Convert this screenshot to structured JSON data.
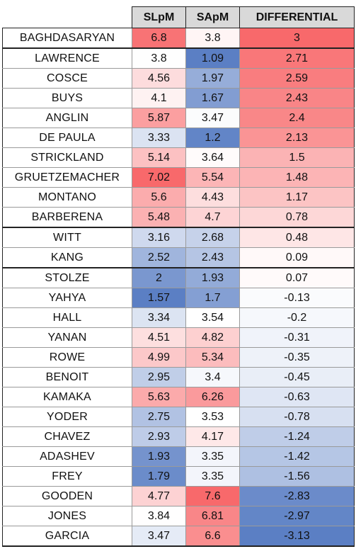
{
  "headers": [
    "",
    "SLpM",
    "SApM",
    "DIFFERENTIAL"
  ],
  "colors": {
    "low": "#5b7fc4",
    "mid": "#ffffff",
    "high": "#f8696b"
  },
  "rows": [
    {
      "name": "BAGHDASARYAN",
      "slpm": "6.8",
      "sapm": "3.8",
      "diff": "3"
    },
    {
      "name": "LAWRENCE",
      "slpm": "3.8",
      "sapm": "1.09",
      "diff": "2.71"
    },
    {
      "name": "COSCE",
      "slpm": "4.56",
      "sapm": "1.97",
      "diff": "2.59"
    },
    {
      "name": "BUYS",
      "slpm": "4.1",
      "sapm": "1.67",
      "diff": "2.43"
    },
    {
      "name": "ANGLIN",
      "slpm": "5.87",
      "sapm": "3.47",
      "diff": "2.4"
    },
    {
      "name": "DE PAULA",
      "slpm": "3.33",
      "sapm": "1.2",
      "diff": "2.13"
    },
    {
      "name": "STRICKLAND",
      "slpm": "5.14",
      "sapm": "3.64",
      "diff": "1.5"
    },
    {
      "name": "GRUETZEMACHER",
      "slpm": "7.02",
      "sapm": "5.54",
      "diff": "1.48"
    },
    {
      "name": "MONTANO",
      "slpm": "5.6",
      "sapm": "4.43",
      "diff": "1.17"
    },
    {
      "name": "BARBERENA",
      "slpm": "5.48",
      "sapm": "4.7",
      "diff": "0.78"
    },
    {
      "name": "WITT",
      "slpm": "3.16",
      "sapm": "2.68",
      "diff": "0.48"
    },
    {
      "name": "KANG",
      "slpm": "2.52",
      "sapm": "2.43",
      "diff": "0.09"
    },
    {
      "name": "STOLZE",
      "slpm": "2",
      "sapm": "1.93",
      "diff": "0.07"
    },
    {
      "name": "YAHYA",
      "slpm": "1.57",
      "sapm": "1.7",
      "diff": "-0.13"
    },
    {
      "name": "HALL",
      "slpm": "3.34",
      "sapm": "3.54",
      "diff": "-0.2"
    },
    {
      "name": "YANAN",
      "slpm": "4.51",
      "sapm": "4.82",
      "diff": "-0.31"
    },
    {
      "name": "ROWE",
      "slpm": "4.99",
      "sapm": "5.34",
      "diff": "-0.35"
    },
    {
      "name": "BENOIT",
      "slpm": "2.95",
      "sapm": "3.4",
      "diff": "-0.45"
    },
    {
      "name": "KAMAKA",
      "slpm": "5.63",
      "sapm": "6.26",
      "diff": "-0.63"
    },
    {
      "name": "YODER",
      "slpm": "2.75",
      "sapm": "3.53",
      "diff": "-0.78"
    },
    {
      "name": "CHAVEZ",
      "slpm": "2.93",
      "sapm": "4.17",
      "diff": "-1.24"
    },
    {
      "name": "ADASHEV",
      "slpm": "1.93",
      "sapm": "3.35",
      "diff": "-1.42"
    },
    {
      "name": "FREY",
      "slpm": "1.79",
      "sapm": "3.35",
      "diff": "-1.56"
    },
    {
      "name": "GOODEN",
      "slpm": "4.77",
      "sapm": "7.6",
      "diff": "-2.83"
    },
    {
      "name": "JONES",
      "slpm": "3.84",
      "sapm": "6.81",
      "diff": "-2.97"
    },
    {
      "name": "GARCIA",
      "slpm": "3.47",
      "sapm": "6.6",
      "diff": "-3.13"
    }
  ]
}
